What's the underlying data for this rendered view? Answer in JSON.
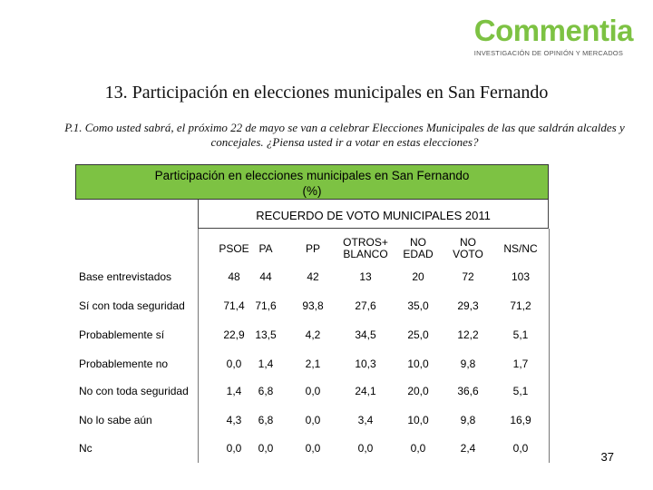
{
  "logo": {
    "word": "Commentia",
    "tagline": "INVESTIGACIÓN DE OPINIÓN Y MERCADOS"
  },
  "title": "13. Participación en elecciones municipales en San Fernando",
  "question": "P.1. Como usted sabrá, el próximo 22 de mayo se van a celebrar Elecciones Municipales de las que saldrán alcaldes y concejales. ¿Piensa usted ir a votar en estas elecciones?",
  "table": {
    "header_line1": "Participación en elecciones municipales en San Fernando",
    "header_line2": "(%)",
    "group_header": "RECUERDO DE VOTO MUNICIPALES 2011",
    "columns": [
      "PSOE",
      "PA",
      "PP",
      "OTROS+ BLANCO",
      "NO EDAD",
      "NO VOTO",
      "NS/NC"
    ],
    "rows": [
      {
        "label": "Base entrevistados",
        "values": [
          "48",
          "44",
          "42",
          "13",
          "20",
          "72",
          "103"
        ]
      },
      {
        "label": "Sí con toda seguridad",
        "values": [
          "71,4",
          "71,6",
          "93,8",
          "27,6",
          "35,0",
          "29,3",
          "71,2"
        ]
      },
      {
        "label": "Probablemente sí",
        "values": [
          "22,9",
          "13,5",
          "4,2",
          "34,5",
          "25,0",
          "12,2",
          "5,1"
        ]
      },
      {
        "label": "Probablemente no",
        "values": [
          "0,0",
          "1,4",
          "2,1",
          "10,3",
          "10,0",
          "9,8",
          "1,7"
        ]
      },
      {
        "label": "No con toda seguridad",
        "values": [
          "1,4",
          "6,8",
          "0,0",
          "24,1",
          "20,0",
          "36,6",
          "5,1"
        ]
      },
      {
        "label": "No lo sabe aún",
        "values": [
          "4,3",
          "6,8",
          "0,0",
          "3,4",
          "10,0",
          "9,8",
          "16,9"
        ]
      },
      {
        "label": "Nc",
        "values": [
          "0,0",
          "0,0",
          "0,0",
          "0,0",
          "0,0",
          "2,4",
          "0,0"
        ]
      }
    ]
  },
  "page_number": "37"
}
